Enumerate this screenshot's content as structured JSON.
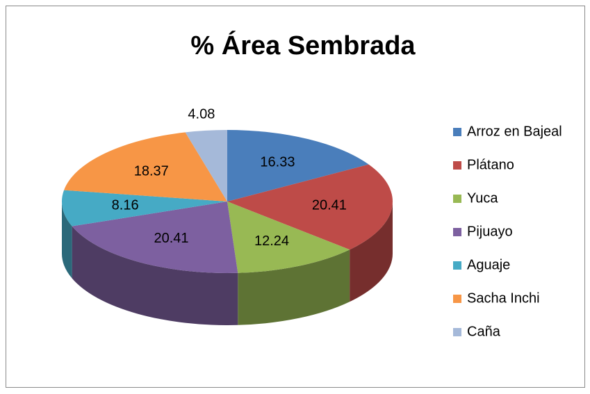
{
  "chart_data": {
    "type": "pie",
    "title": "% Área Sembrada",
    "categories": [
      "Arroz en Bajeal",
      "Plátano",
      "Yuca",
      "Pijuayo",
      "Aguaje",
      "Sacha Inchi",
      "Caña"
    ],
    "values": [
      16.33,
      20.41,
      12.24,
      20.41,
      8.16,
      18.37,
      4.08
    ],
    "colors": [
      "#4a7ebb",
      "#be4b48",
      "#98b954",
      "#7d60a0",
      "#46aac5",
      "#f79646",
      "#a5b9d9"
    ],
    "legend": "right"
  }
}
